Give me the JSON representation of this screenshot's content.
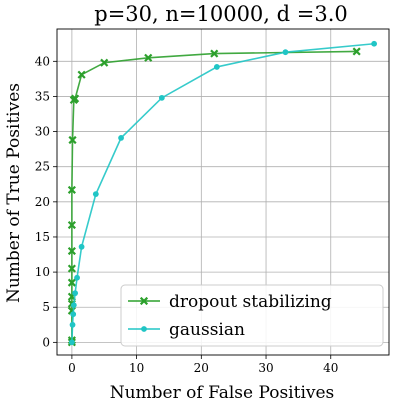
{
  "chart_data": {
    "type": "line",
    "title": "p=30, n=10000, d =3.0",
    "xlabel": "Number of False Positives",
    "ylabel": "Number of True Positives",
    "xlim": [
      -2.3,
      49.0
    ],
    "ylim": [
      -1.8,
      44.6
    ],
    "xticks": [
      0,
      10,
      20,
      30,
      40
    ],
    "yticks": [
      0,
      5,
      10,
      15,
      20,
      25,
      30,
      35,
      40
    ],
    "grid": true,
    "legend_position": "bottom-right",
    "series": [
      {
        "name": "dropout stabilizing",
        "color": "#2ca02c",
        "marker": "x",
        "x": [
          0,
          0,
          0,
          0,
          0,
          0,
          0,
          0,
          0,
          0,
          0.1,
          0.3,
          0.5,
          1.5,
          5.0,
          11.8,
          22.0,
          44.0
        ],
        "y": [
          0,
          0.3,
          4.5,
          5.5,
          6.5,
          8.5,
          10.5,
          13.0,
          16.7,
          21.7,
          28.8,
          34.5,
          34.7,
          38.1,
          39.8,
          40.5,
          41.1,
          41.4
        ]
      },
      {
        "name": "gaussian",
        "color": "#20c5c5",
        "marker": "o",
        "x": [
          0,
          0.1,
          0.2,
          0.3,
          0.5,
          0.8,
          1.5,
          3.7,
          7.6,
          13.9,
          22.4,
          33.0,
          46.7
        ],
        "y": [
          0,
          2.5,
          4.0,
          5.3,
          7.0,
          9.2,
          13.6,
          21.1,
          29.1,
          34.8,
          39.2,
          41.3,
          42.5
        ]
      }
    ]
  }
}
